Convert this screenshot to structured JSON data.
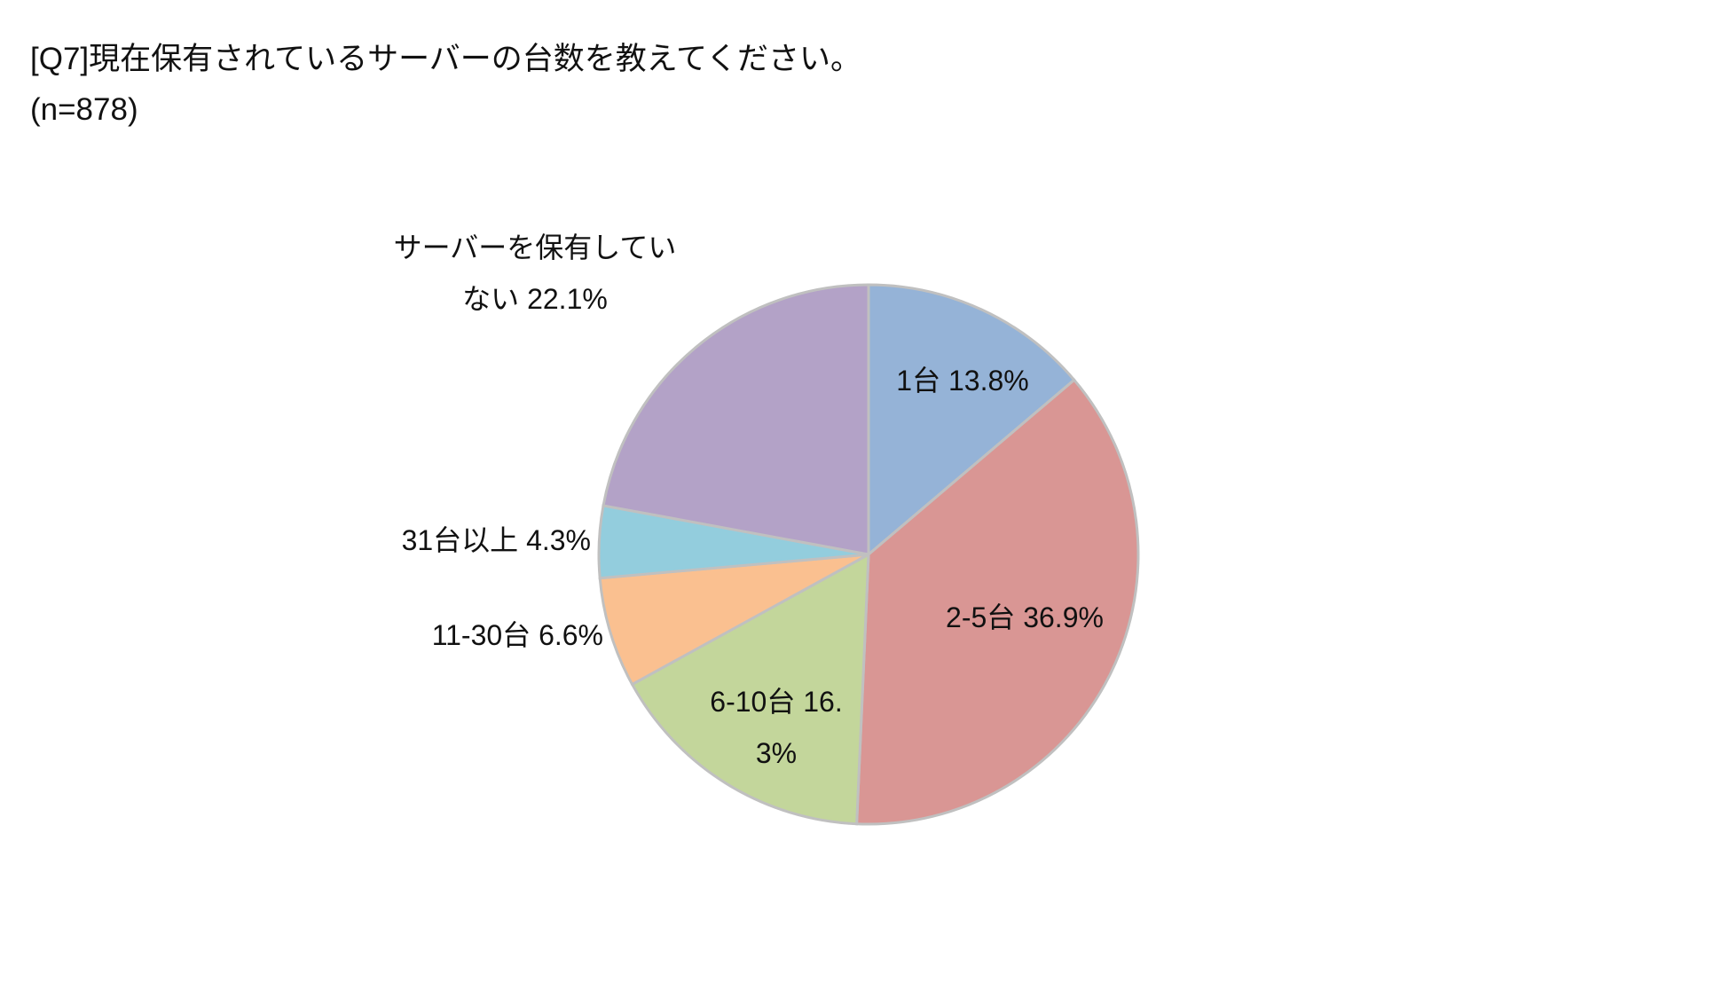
{
  "chart_data": {
    "type": "pie",
    "title": "[Q7]現在保有されているサーバーの台数を教えてください。",
    "subtitle": "(n=878)",
    "categories": [
      "1台",
      "2-5台",
      "6-10台",
      "11-30台",
      "31台以上",
      "サーバーを保有していない"
    ],
    "values": [
      13.8,
      36.9,
      16.3,
      6.6,
      4.3,
      22.1
    ],
    "value_labels": [
      "13.8%",
      "36.9%",
      "16.3%",
      "6.6%",
      "4.3%",
      "22.1%"
    ],
    "colors": [
      "#95b3d7",
      "#d99694",
      "#c3d69b",
      "#fac090",
      "#93cddd",
      "#b3a2c7"
    ]
  }
}
